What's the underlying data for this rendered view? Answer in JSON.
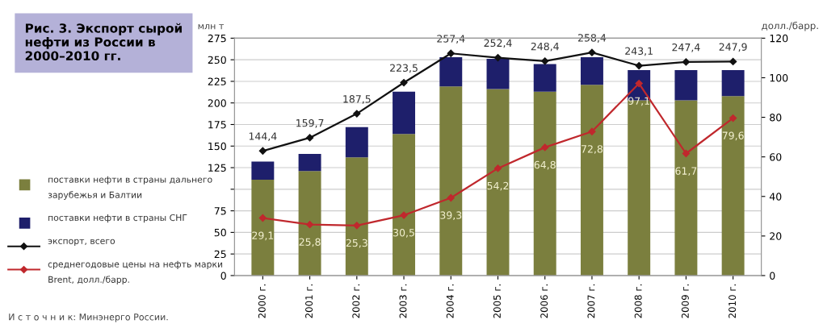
{
  "chart_data": {
    "type": "bar",
    "stacked": true,
    "title": "Рис. 3. Экспорт сырой нефти из России в 2000–2010 гг.",
    "ylabel": "млн т",
    "y2label": "долл./барр.",
    "categories": [
      "2000 г.",
      "2001 г.",
      "2002 г.",
      "2003 г.",
      "2004 г.",
      "2005 г.",
      "2006 г.",
      "2007 г.",
      "2008 г.",
      "2009 г.",
      "2010 г."
    ],
    "series": [
      {
        "name": "поставки нефти в страны дальнего зарубежья и Балтии",
        "color": "#7b7f3e",
        "values": [
          111,
          121,
          137,
          164,
          219,
          216,
          213,
          221,
          203,
          203,
          208
        ]
      },
      {
        "name": "поставки нефти в страны СНГ",
        "color": "#1e1f6b",
        "values": [
          21,
          20,
          35,
          49,
          34,
          35,
          32,
          32,
          35,
          35,
          30
        ]
      },
      {
        "name": "экспорт, всего",
        "type": "line",
        "color": "#111111",
        "marker": "diamond",
        "values": [
          144.4,
          159.7,
          187.5,
          223.5,
          257.4,
          252.4,
          248.4,
          258.4,
          243.1,
          247.4,
          247.9
        ],
        "value_labels": [
          "144,4",
          "159,7",
          "187,5",
          "223,5",
          "257,4",
          "252,4",
          "248,4",
          "258,4",
          "243,1",
          "247,4",
          "247,9"
        ]
      },
      {
        "name": "среднегодовые цены на нефть марки Brent, долл./барр.",
        "type": "line",
        "axis": "y2",
        "color": "#c0282d",
        "marker": "diamond",
        "values": [
          29.1,
          25.8,
          25.3,
          30.5,
          39.3,
          54.2,
          64.8,
          72.8,
          97.1,
          61.7,
          79.6
        ],
        "value_labels": [
          "29,1",
          "25,8",
          "25,3",
          "30,5",
          "39,3",
          "54,2",
          "64,8",
          "72,8",
          "97,1",
          "61,7",
          "79,6"
        ]
      }
    ],
    "ylim": [
      0,
      275
    ],
    "yticks": [
      0,
      25,
      50,
      75,
      {
        "value": 100,
        "label": null
      },
      125,
      150,
      175,
      200,
      225,
      250,
      275
    ],
    "y2lim": [
      0,
      120
    ],
    "y2ticks": [
      0,
      20,
      40,
      60,
      80,
      100,
      120
    ],
    "grid": "y",
    "legend": "left",
    "annotations": [
      "И с т о ч н и к: Минэнерго России."
    ]
  }
}
